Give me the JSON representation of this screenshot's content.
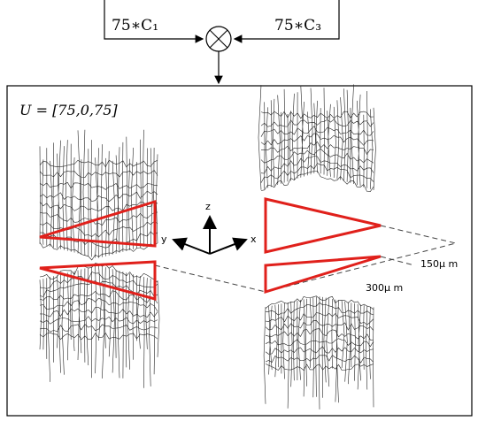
{
  "inputs": {
    "left": "75∗C₁",
    "right": "75∗C₃"
  },
  "panel": {
    "caption": "U = [75,0,75]",
    "axes": {
      "z": "z",
      "y": "y",
      "x": "x"
    },
    "dimensions": {
      "outer": "150μ m",
      "inner": "300μ m"
    }
  }
}
